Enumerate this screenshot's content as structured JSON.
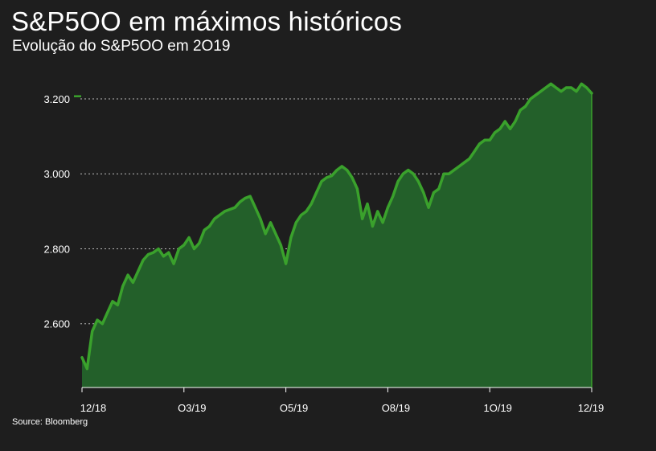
{
  "title": "S&P5OO em máximos históricos",
  "subtitle": "Evolução do S&P5OO em 2O19",
  "source": "Source: Bloomberg",
  "colors": {
    "background": "#1e1e1e",
    "line": "#3aa12c",
    "area": "#23602a",
    "grid": "#bbbbbb",
    "text": "#ffffff"
  },
  "chart_data": {
    "type": "area",
    "title": "S&P5OO em máximos históricos",
    "subtitle": "Evolução do S&P5OO em 2O19",
    "xlabel": "",
    "ylabel": "",
    "ylim": [
      2430,
      3260
    ],
    "y_ticks": [
      {
        "value": 2600,
        "label": "2.600"
      },
      {
        "value": 2800,
        "label": "2.800"
      },
      {
        "value": 3000,
        "label": "3.000"
      },
      {
        "value": 3200,
        "label": "3.200"
      }
    ],
    "x_ticks": [
      "12/18",
      "O3/19",
      "O5/19",
      "O8/19",
      "1O/19",
      "12/19"
    ],
    "grid": "horizontal dotted",
    "legend": "none",
    "series": [
      {
        "name": "S&P5OO",
        "x": [
          0,
          0.01,
          0.02,
          0.03,
          0.04,
          0.05,
          0.06,
          0.07,
          0.08,
          0.09,
          0.1,
          0.11,
          0.12,
          0.13,
          0.14,
          0.15,
          0.16,
          0.17,
          0.18,
          0.19,
          0.2,
          0.21,
          0.22,
          0.23,
          0.24,
          0.25,
          0.26,
          0.27,
          0.28,
          0.29,
          0.3,
          0.31,
          0.32,
          0.33,
          0.34,
          0.35,
          0.36,
          0.37,
          0.38,
          0.39,
          0.4,
          0.41,
          0.42,
          0.43,
          0.44,
          0.45,
          0.46,
          0.47,
          0.48,
          0.49,
          0.5,
          0.51,
          0.52,
          0.53,
          0.54,
          0.55,
          0.56,
          0.57,
          0.58,
          0.59,
          0.6,
          0.61,
          0.62,
          0.63,
          0.64,
          0.65,
          0.66,
          0.67,
          0.68,
          0.69,
          0.7,
          0.71,
          0.72,
          0.73,
          0.74,
          0.75,
          0.76,
          0.77,
          0.78,
          0.79,
          0.8,
          0.81,
          0.82,
          0.83,
          0.84,
          0.85,
          0.86,
          0.87,
          0.88,
          0.89,
          0.9,
          0.91,
          0.92,
          0.93,
          0.94,
          0.95,
          0.96,
          0.97,
          0.98,
          0.99,
          1.0
        ],
        "values": [
          2510,
          2480,
          2580,
          2610,
          2600,
          2630,
          2660,
          2650,
          2700,
          2730,
          2710,
          2740,
          2770,
          2785,
          2790,
          2800,
          2780,
          2790,
          2760,
          2800,
          2810,
          2830,
          2800,
          2815,
          2850,
          2860,
          2880,
          2890,
          2900,
          2905,
          2910,
          2925,
          2935,
          2940,
          2910,
          2880,
          2840,
          2870,
          2840,
          2810,
          2760,
          2830,
          2870,
          2890,
          2900,
          2920,
          2950,
          2980,
          2990,
          2995,
          3010,
          3020,
          3010,
          2990,
          2960,
          2880,
          2920,
          2860,
          2900,
          2870,
          2910,
          2940,
          2980,
          3000,
          3010,
          3000,
          2980,
          2950,
          2910,
          2950,
          2960,
          3000,
          3000,
          3010,
          3020,
          3030,
          3040,
          3060,
          3080,
          3090,
          3090,
          3110,
          3120,
          3140,
          3120,
          3140,
          3170,
          3180,
          3200,
          3210,
          3220,
          3230,
          3240,
          3230,
          3220,
          3230,
          3230,
          3220,
          3240,
          3230,
          3215
        ],
        "start_label_date": "12/18",
        "end_label_date": "12/19"
      }
    ]
  }
}
